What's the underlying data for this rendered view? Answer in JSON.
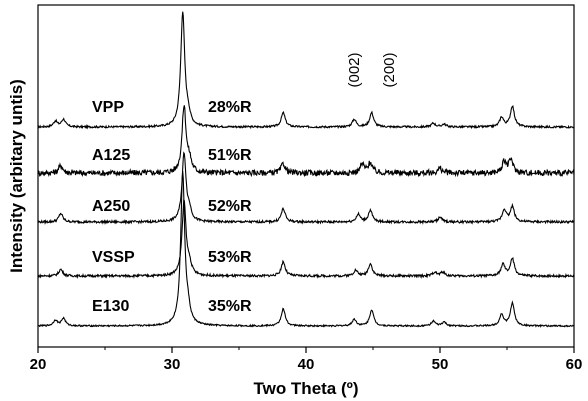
{
  "chart_data": {
    "type": "line",
    "title": "",
    "xlabel": "Two Theta (º)",
    "ylabel": "Intensity (arbitary untis)",
    "xlim": [
      20,
      60
    ],
    "xticks": [
      20,
      30,
      40,
      50,
      60
    ],
    "ytick_labels": false,
    "grid": false,
    "legend": "none",
    "annotations": [
      {
        "text": "(002)",
        "x": 43.6,
        "rotation": -90
      },
      {
        "text": "(200)",
        "x": 46.2,
        "rotation": -90
      }
    ],
    "peaks_common": [
      21.3,
      21.9,
      30.8,
      31.2,
      38.3,
      43.6,
      44.9,
      49.5,
      50.3,
      54.6,
      55.4
    ],
    "series": [
      {
        "name": "VPP",
        "label": "28%R",
        "offset": 4,
        "noise": 0.01,
        "peaks": [
          {
            "x": 21.3,
            "h": 0.06
          },
          {
            "x": 21.9,
            "h": 0.08
          },
          {
            "x": 30.8,
            "h": 1.2
          },
          {
            "x": 31.2,
            "h": 0.1
          },
          {
            "x": 38.3,
            "h": 0.15
          },
          {
            "x": 43.6,
            "h": 0.08
          },
          {
            "x": 44.9,
            "h": 0.15
          },
          {
            "x": 49.5,
            "h": 0.04
          },
          {
            "x": 50.3,
            "h": 0.03
          },
          {
            "x": 54.6,
            "h": 0.1
          },
          {
            "x": 55.4,
            "h": 0.22
          }
        ]
      },
      {
        "name": "A125",
        "label": "51%R",
        "offset": 3,
        "noise": 0.03,
        "peaks": [
          {
            "x": 21.7,
            "h": 0.08
          },
          {
            "x": 30.9,
            "h": 0.7
          },
          {
            "x": 31.3,
            "h": 0.12
          },
          {
            "x": 38.3,
            "h": 0.1
          },
          {
            "x": 44.2,
            "h": 0.09
          },
          {
            "x": 44.8,
            "h": 0.11
          },
          {
            "x": 50.0,
            "h": 0.05
          },
          {
            "x": 54.8,
            "h": 0.12
          },
          {
            "x": 55.3,
            "h": 0.14
          }
        ]
      },
      {
        "name": "A250",
        "label": "52%R",
        "offset": 2,
        "noise": 0.012,
        "peaks": [
          {
            "x": 21.7,
            "h": 0.09
          },
          {
            "x": 30.9,
            "h": 0.72
          },
          {
            "x": 31.3,
            "h": 0.1
          },
          {
            "x": 38.3,
            "h": 0.14
          },
          {
            "x": 43.9,
            "h": 0.08
          },
          {
            "x": 44.8,
            "h": 0.12
          },
          {
            "x": 50.0,
            "h": 0.05
          },
          {
            "x": 54.8,
            "h": 0.13
          },
          {
            "x": 55.4,
            "h": 0.16
          }
        ]
      },
      {
        "name": "VSSP",
        "label": "53%R",
        "offset": 1,
        "noise": 0.012,
        "peaks": [
          {
            "x": 21.7,
            "h": 0.07
          },
          {
            "x": 30.9,
            "h": 0.78
          },
          {
            "x": 31.3,
            "h": 0.1
          },
          {
            "x": 38.3,
            "h": 0.15
          },
          {
            "x": 43.7,
            "h": 0.06
          },
          {
            "x": 44.8,
            "h": 0.13
          },
          {
            "x": 49.6,
            "h": 0.04
          },
          {
            "x": 50.2,
            "h": 0.04
          },
          {
            "x": 54.7,
            "h": 0.12
          },
          {
            "x": 55.4,
            "h": 0.18
          }
        ]
      },
      {
        "name": "E130",
        "label": "35%R",
        "offset": 0,
        "noise": 0.008,
        "peaks": [
          {
            "x": 21.3,
            "h": 0.06
          },
          {
            "x": 21.9,
            "h": 0.08
          },
          {
            "x": 30.8,
            "h": 1.6
          },
          {
            "x": 31.2,
            "h": 0.12
          },
          {
            "x": 38.3,
            "h": 0.18
          },
          {
            "x": 43.6,
            "h": 0.07
          },
          {
            "x": 44.9,
            "h": 0.17
          },
          {
            "x": 49.5,
            "h": 0.05
          },
          {
            "x": 50.3,
            "h": 0.04
          },
          {
            "x": 54.6,
            "h": 0.12
          },
          {
            "x": 55.4,
            "h": 0.24
          }
        ]
      }
    ]
  }
}
